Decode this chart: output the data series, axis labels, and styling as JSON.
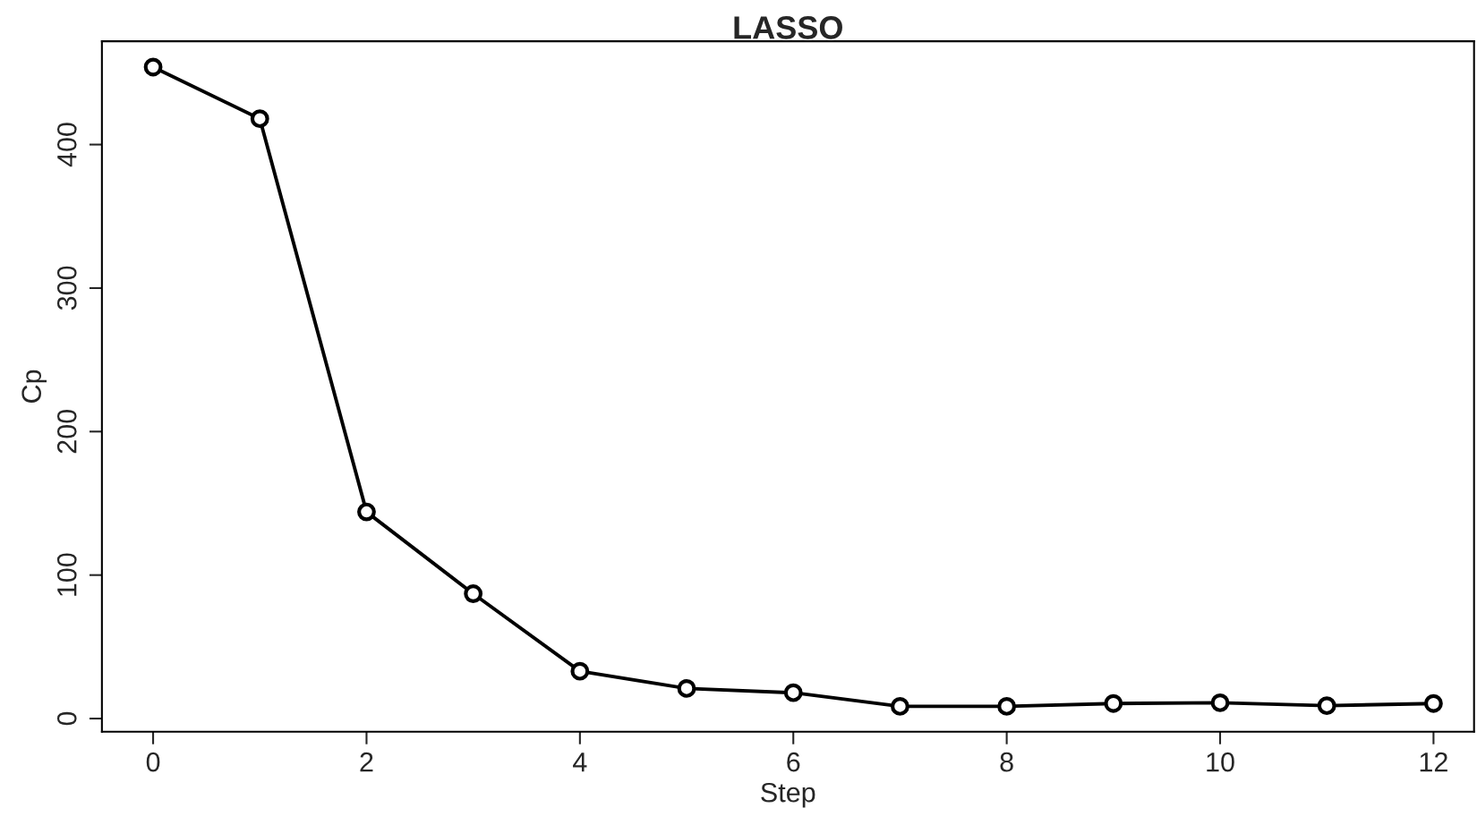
{
  "chart_data": {
    "type": "line",
    "title": "LASSO",
    "xlabel": "Step",
    "ylabel": "Cp",
    "x": [
      0,
      1,
      2,
      3,
      4,
      5,
      6,
      7,
      8,
      9,
      10,
      11,
      12
    ],
    "series": [
      {
        "color": "#000000",
        "values": [
          454,
          418,
          144,
          87,
          33,
          21,
          18,
          8.5,
          8.5,
          10.5,
          11,
          9,
          10.5
        ]
      }
    ],
    "xlim": [
      -0.48,
      12.38
    ],
    "xticks": [
      0,
      2,
      4,
      6,
      8,
      10,
      12
    ],
    "ylim": [
      -9.2,
      472
    ],
    "yticks": [
      0,
      100,
      200,
      300,
      400
    ],
    "marker": "circle",
    "line_style": "solid",
    "grid": false,
    "legend": false
  }
}
